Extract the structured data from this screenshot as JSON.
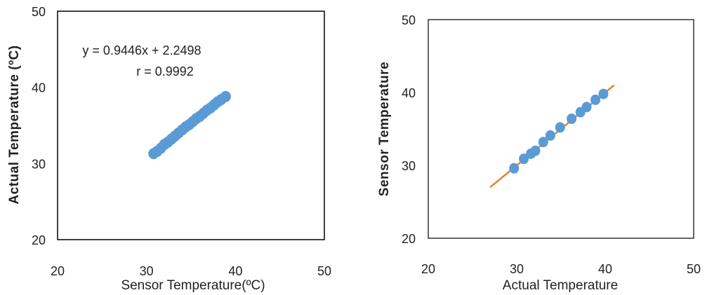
{
  "chart_data": [
    {
      "type": "scatter",
      "xlabel": "Sensor Temperature(ºC)",
      "ylabel": "Actual Temperature (ºC)",
      "xlim": [
        20,
        50
      ],
      "ylim": [
        20,
        50
      ],
      "xticks": [
        "20",
        "30",
        "40",
        "50"
      ],
      "yticks": [
        "20",
        "30",
        "40",
        "50"
      ],
      "annotations": [
        "y = 0.9446x + 2.2498",
        "r = 0.9992"
      ],
      "marker_color": "#5b9bd5",
      "series": [
        {
          "x": [
            30.8,
            31.2,
            31.6,
            32.0,
            32.4,
            32.8,
            33.2,
            33.6,
            34.0,
            34.4,
            34.8,
            35.2,
            35.6,
            36.0,
            36.4,
            36.8,
            37.2,
            37.6,
            38.0,
            38.4,
            38.9
          ],
          "y": [
            31.3,
            31.6,
            32.0,
            32.5,
            32.8,
            33.2,
            33.6,
            34.0,
            34.4,
            34.8,
            35.1,
            35.5,
            35.9,
            36.2,
            36.6,
            37.0,
            37.3,
            37.7,
            38.1,
            38.4,
            38.8
          ]
        }
      ]
    },
    {
      "type": "scatter",
      "xlabel": "Actual Temperature",
      "ylabel": "Sensor Temperature",
      "xlim": [
        20,
        50
      ],
      "ylim": [
        20,
        50
      ],
      "xticks": [
        "20",
        "30",
        "40",
        "50"
      ],
      "yticks": [
        "20",
        "30",
        "40",
        "50"
      ],
      "marker_color": "#5b9bd5",
      "line_color": "#ed7d31",
      "trendline": {
        "x": [
          27,
          41
        ],
        "y": [
          27,
          41
        ]
      },
      "series": [
        {
          "x": [
            29.7,
            30.8,
            31.6,
            32.1,
            33.0,
            33.8,
            34.9,
            36.2,
            37.2,
            37.9,
            38.9,
            39.8
          ],
          "y": [
            29.6,
            30.9,
            31.6,
            32.0,
            33.2,
            34.1,
            35.2,
            36.4,
            37.3,
            38.0,
            39.0,
            39.8
          ]
        }
      ]
    }
  ]
}
